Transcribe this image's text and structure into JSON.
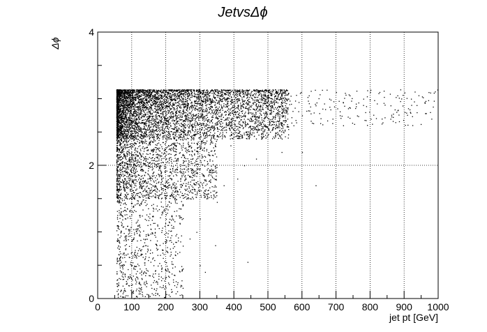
{
  "chart_data": {
    "type": "scatter",
    "title": "JetvsΔϕ",
    "xlabel": "jet pt [GeV]",
    "ylabel": "Δϕ",
    "xlim": [
      0,
      1000
    ],
    "ylim": [
      0,
      4
    ],
    "x_ticks": [
      "0",
      "100",
      "200",
      "300",
      "400",
      "500",
      "600",
      "700",
      "800",
      "900",
      "1000"
    ],
    "y_ticks": [
      "0",
      "2",
      "4"
    ],
    "grid": true,
    "marker_color": "#000000",
    "description_of_density": [
      {
        "x_range": [
          55,
          560
        ],
        "y_range": [
          2.4,
          3.14
        ],
        "density": "very high"
      },
      {
        "x_range": [
          55,
          350
        ],
        "y_range": [
          1.5,
          2.4
        ],
        "density": "high"
      },
      {
        "x_range": [
          55,
          250
        ],
        "y_range": [
          0,
          1.5
        ],
        "density": "medium"
      },
      {
        "x_range": [
          560,
          1000
        ],
        "y_range": [
          2.6,
          3.14
        ],
        "density": "sparse"
      }
    ],
    "points": [
      [
        980,
        2.7
      ],
      [
        960,
        2.95
      ],
      [
        920,
        3.0
      ],
      [
        880,
        3.05
      ],
      [
        860,
        2.9
      ],
      [
        840,
        3.12
      ],
      [
        800,
        3.1
      ],
      [
        780,
        3.0
      ],
      [
        760,
        3.12
      ],
      [
        740,
        3.05
      ],
      [
        720,
        2.95
      ],
      [
        700,
        3.1
      ],
      [
        680,
        3.0
      ],
      [
        660,
        2.85
      ],
      [
        640,
        2.9
      ],
      [
        620,
        3.05
      ],
      [
        600,
        2.75
      ],
      [
        590,
        2.95
      ],
      [
        575,
        2.6
      ],
      [
        560,
        3.0
      ],
      [
        540,
        2.2
      ],
      [
        520,
        2.7
      ],
      [
        500,
        2.9
      ],
      [
        480,
        2.4
      ],
      [
        465,
        2.1
      ],
      [
        450,
        2.55
      ],
      [
        640,
        1.7
      ],
      [
        600,
        2.2
      ],
      [
        430,
        2.0
      ],
      [
        410,
        1.8
      ],
      [
        390,
        2.3
      ],
      [
        370,
        1.7
      ],
      [
        350,
        1.45
      ],
      [
        330,
        2.5
      ],
      [
        310,
        1.6
      ],
      [
        300,
        1.2
      ],
      [
        290,
        1.0
      ],
      [
        280,
        1.9
      ],
      [
        270,
        0.9
      ],
      [
        260,
        1.5
      ],
      [
        250,
        0.45
      ],
      [
        240,
        0.7
      ],
      [
        440,
        0.55
      ],
      [
        345,
        0.8
      ],
      [
        315,
        0.4
      ],
      [
        300,
        0.5
      ],
      [
        225,
        0.2
      ],
      [
        210,
        0.4
      ],
      [
        195,
        0.15
      ],
      [
        180,
        0.05
      ],
      [
        170,
        0.25
      ],
      [
        160,
        0.6
      ],
      [
        150,
        0.35
      ],
      [
        140,
        0.8
      ],
      [
        130,
        0.1
      ],
      [
        120,
        0.5
      ],
      [
        110,
        0.3
      ],
      [
        100,
        0.7
      ],
      [
        90,
        0.2
      ],
      [
        80,
        0.9
      ],
      [
        70,
        1.1
      ],
      [
        62,
        0.85
      ],
      [
        60,
        1.6
      ],
      [
        66,
        1.9
      ]
    ]
  }
}
